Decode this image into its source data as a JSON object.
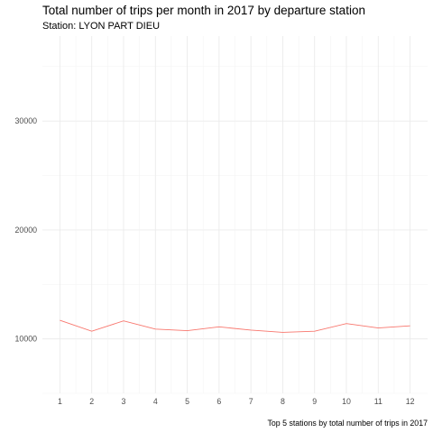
{
  "chart_data": {
    "type": "line",
    "title": "Total number of trips per month in 2017 by departure station",
    "subtitle": "Station: LYON PART DIEU",
    "caption": "Top 5 stations by total number of trips in 2017",
    "xlabel": "",
    "ylabel": "",
    "x": [
      1,
      2,
      3,
      4,
      5,
      6,
      7,
      8,
      9,
      10,
      11,
      12
    ],
    "x_tick_labels": [
      "1",
      "2",
      "3",
      "4",
      "5",
      "6",
      "7",
      "8",
      "9",
      "10",
      "11",
      "12"
    ],
    "series": [
      {
        "values": [
          11700,
          10700,
          11650,
          10900,
          10750,
          11100,
          10800,
          10600,
          10700,
          11400,
          11000,
          11200
        ],
        "color": "#f8766d"
      }
    ],
    "xlim": [
      0.45,
      12.55
    ],
    "ylim": [
      5000,
      37800
    ],
    "y_ticks": [
      10000,
      20000,
      30000
    ],
    "y_tick_labels": [
      "10000",
      "20000",
      "30000"
    ],
    "grid": true,
    "legend": "none"
  }
}
